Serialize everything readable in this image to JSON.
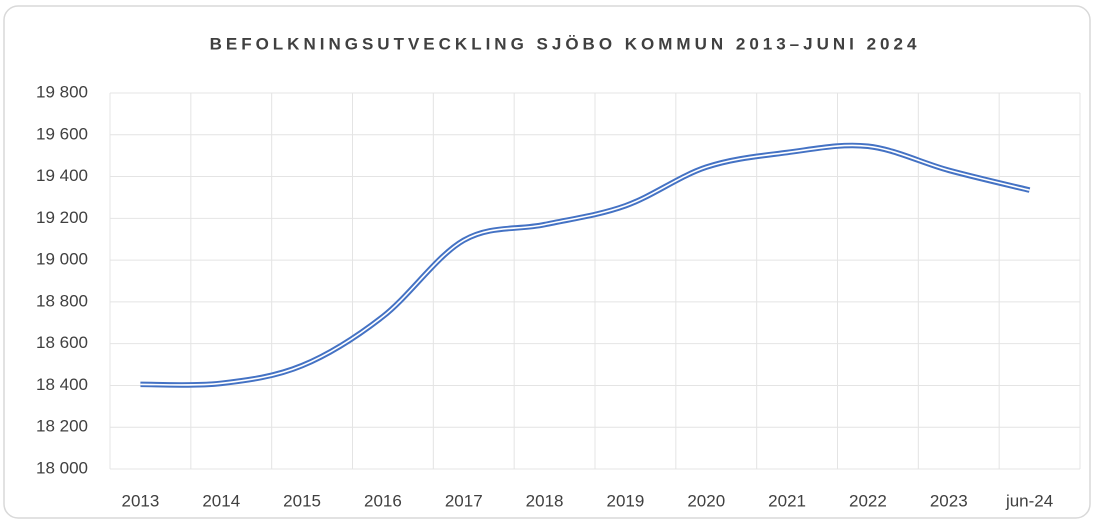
{
  "chart_data": {
    "type": "line",
    "title": "BEFOLKNINGSUTVECKLING SJÖBO KOMMUN 2013–JUNI 2024",
    "categories": [
      "2013",
      "2014",
      "2015",
      "2016",
      "2017",
      "2018",
      "2019",
      "2020",
      "2021",
      "2022",
      "2023",
      "jun-24"
    ],
    "series": [
      {
        "color": "#4472c4",
        "values": [
          18405,
          18410,
          18495,
          18730,
          19095,
          19170,
          19260,
          19445,
          19515,
          19545,
          19430,
          19335
        ]
      }
    ],
    "ylim": [
      18000,
      19800
    ],
    "yticks": [
      {
        "value": 18000,
        "label": "18 000"
      },
      {
        "value": 18200,
        "label": "18 200"
      },
      {
        "value": 18400,
        "label": "18 400"
      },
      {
        "value": 18600,
        "label": "18 600"
      },
      {
        "value": 18800,
        "label": "18 800"
      },
      {
        "value": 19000,
        "label": "19 000"
      },
      {
        "value": 19200,
        "label": "19 200"
      },
      {
        "value": 19400,
        "label": "19 400"
      },
      {
        "value": 19600,
        "label": "19 600"
      },
      {
        "value": 19800,
        "label": "19 800"
      }
    ],
    "grid": true
  }
}
